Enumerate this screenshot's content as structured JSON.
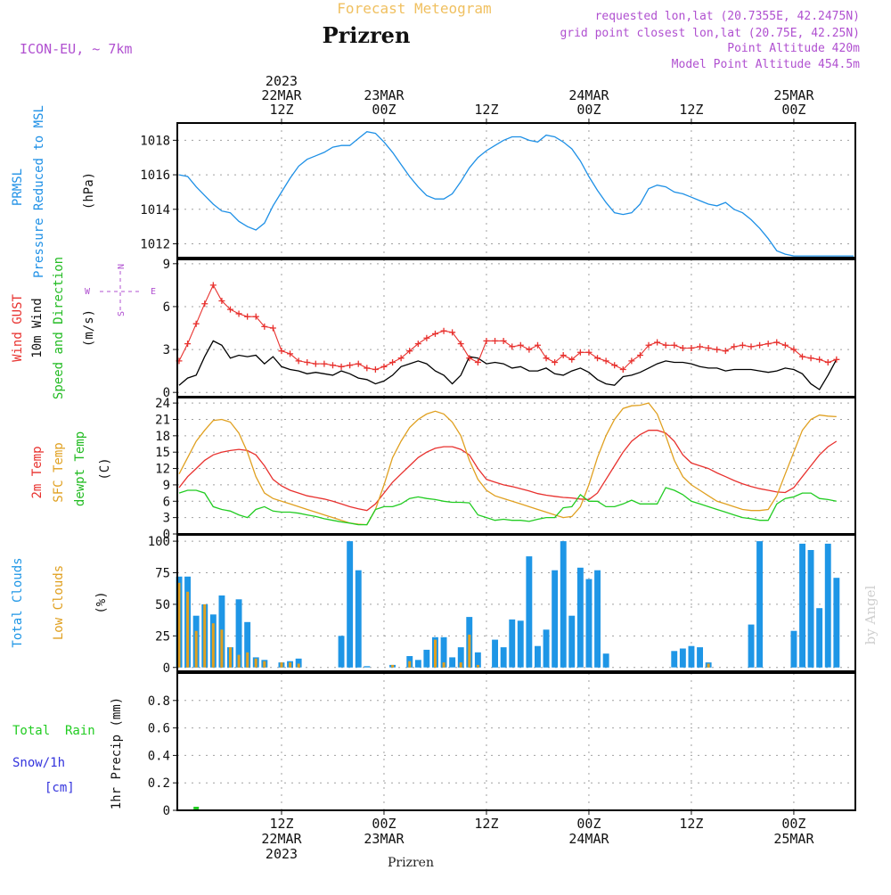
{
  "header": {
    "product_title": "Forecast Meteogram",
    "location": "Prizren",
    "model": "ICON-EU, ~ 7km",
    "requested_point": "requested lon,lat (20.7355E, 42.2475N)",
    "grid_point": "grid point closest lon,lat (20.75E, 42.25N)",
    "point_altitude": "Point Altitude 420m",
    "model_altitude": "Model Point Altitude 454.5m",
    "watermark": "by Angel",
    "footer_location": "Prizren"
  },
  "time_axis": {
    "top_labels": [
      {
        "t": 12,
        "lines": [
          "2023",
          "22MAR",
          "12Z"
        ]
      },
      {
        "t": 24,
        "lines": [
          "23MAR",
          "00Z"
        ]
      },
      {
        "t": 36,
        "lines": [
          "12Z"
        ]
      },
      {
        "t": 48,
        "lines": [
          "24MAR",
          "00Z"
        ]
      },
      {
        "t": 60,
        "lines": [
          "12Z"
        ]
      },
      {
        "t": 72,
        "lines": [
          "25MAR",
          "00Z"
        ]
      }
    ],
    "bottom_labels": [
      {
        "t": 12,
        "lines": [
          "12Z",
          "22MAR",
          "2023"
        ]
      },
      {
        "t": 24,
        "lines": [
          "00Z",
          "23MAR"
        ]
      },
      {
        "t": 36,
        "lines": [
          "12Z"
        ]
      },
      {
        "t": 48,
        "lines": [
          "00Z",
          "24MAR"
        ]
      },
      {
        "t": 60,
        "lines": [
          "12Z"
        ]
      },
      {
        "t": 72,
        "lines": [
          "00Z",
          "25MAR"
        ]
      }
    ]
  },
  "colors": {
    "pressure": "#1e90e6",
    "gust": "#e8312e",
    "wind10m": "#000000",
    "temp2m": "#e8312e",
    "sfc_temp": "#e0a020",
    "dewpoint": "#22cc22",
    "total_clouds": "#1e96e6",
    "low_clouds": "#e0a020",
    "rain": "#22cc22",
    "snow": "#3333dd",
    "label_purple": "#b050d0",
    "title_orange": "#f0c060"
  },
  "chart_data": [
    {
      "type": "line",
      "id": "pressure",
      "ylabel_lines": [
        "PRMSL",
        "Pressure Reduced to MSL"
      ],
      "unit": "(hPa)",
      "ylim": [
        1011.2,
        1019.0
      ],
      "yticks": [
        1012,
        1014,
        1016,
        1018
      ],
      "grid": true,
      "x": [
        0,
        1,
        2,
        3,
        4,
        5,
        6,
        7,
        8,
        9,
        10,
        11,
        12,
        13,
        14,
        15,
        16,
        17,
        18,
        19,
        20,
        21,
        22,
        23,
        24,
        25,
        26,
        27,
        28,
        29,
        30,
        31,
        32,
        33,
        34,
        35,
        36,
        37,
        38,
        39,
        40,
        41,
        42,
        43,
        44,
        45,
        46,
        47,
        48,
        49,
        50,
        51,
        52,
        53,
        54,
        55,
        56,
        57,
        58,
        59,
        60,
        61,
        62,
        63,
        64,
        65,
        66,
        67,
        68,
        69,
        70,
        71,
        72,
        73,
        74,
        75,
        76,
        77,
        78,
        79
      ],
      "series": [
        {
          "values": [
            1016.0,
            1015.9,
            1015.3,
            1014.8,
            1014.3,
            1013.9,
            1013.8,
            1013.3,
            1013.0,
            1012.8,
            1013.2,
            1014.2,
            1015.0,
            1015.8,
            1016.5,
            1016.9,
            1017.1,
            1017.3,
            1017.6,
            1017.7,
            1017.7,
            1018.1,
            1018.5,
            1018.4,
            1017.9,
            1017.3,
            1016.6,
            1015.9,
            1015.3,
            1014.8,
            1014.6,
            1014.6,
            1014.9,
            1015.6,
            1016.4,
            1017.0,
            1017.4,
            1017.7,
            1018.0,
            1018.2,
            1018.2,
            1018.0,
            1017.9,
            1018.3,
            1018.2,
            1017.9,
            1017.5,
            1016.8,
            1015.9,
            1015.1,
            1014.4,
            1013.8,
            1013.7,
            1013.8,
            1014.3,
            1015.2,
            1015.4,
            1015.3,
            1015.0,
            1014.9,
            1014.7,
            1014.5,
            1014.3,
            1014.2,
            1014.4,
            1014.0,
            1013.8,
            1013.4,
            1012.9,
            1012.3,
            1011.6,
            1011.4,
            1011.3,
            1011.3,
            1011.3,
            1011.3,
            1011.3,
            1011.3,
            1011.3,
            1011.3
          ]
        }
      ]
    },
    {
      "type": "line",
      "id": "wind",
      "ylabel_lines": [
        "Wind GUST",
        "10m Wind",
        "Speed and Direction"
      ],
      "unit": "(m/s)",
      "compass": {
        "n": "N",
        "s": "S",
        "w": "W",
        "e": "E"
      },
      "ylim": [
        -0.3,
        9.3
      ],
      "yticks": [
        0,
        3,
        6,
        9
      ],
      "grid": true,
      "x": [
        0,
        1,
        2,
        3,
        4,
        5,
        6,
        7,
        8,
        9,
        10,
        11,
        12,
        13,
        14,
        15,
        16,
        17,
        18,
        19,
        20,
        21,
        22,
        23,
        24,
        25,
        26,
        27,
        28,
        29,
        30,
        31,
        32,
        33,
        34,
        35,
        36,
        37,
        38,
        39,
        40,
        41,
        42,
        43,
        44,
        45,
        46,
        47,
        48,
        49,
        50,
        51,
        52,
        53,
        54,
        55,
        56,
        57,
        58,
        59,
        60,
        61,
        62,
        63,
        64,
        65,
        66,
        67,
        68,
        69,
        70,
        71,
        72,
        73,
        74,
        75,
        76,
        77
      ],
      "series": [
        {
          "name": "Wind GUST",
          "style": "plus",
          "values": [
            2.2,
            3.4,
            4.8,
            6.2,
            7.5,
            6.4,
            5.8,
            5.5,
            5.3,
            5.3,
            4.6,
            4.5,
            2.9,
            2.7,
            2.2,
            2.1,
            2.0,
            2.0,
            1.9,
            1.8,
            1.9,
            2.0,
            1.7,
            1.6,
            1.8,
            2.1,
            2.4,
            2.9,
            3.4,
            3.8,
            4.1,
            4.3,
            4.2,
            3.4,
            2.4,
            2.1,
            3.6,
            3.6,
            3.6,
            3.2,
            3.3,
            3.0,
            3.3,
            2.4,
            2.1,
            2.6,
            2.3,
            2.8,
            2.8,
            2.4,
            2.2,
            1.9,
            1.6,
            2.2,
            2.6,
            3.3,
            3.5,
            3.3,
            3.3,
            3.1,
            3.1,
            3.2,
            3.1,
            3.0,
            2.9,
            3.2,
            3.3,
            3.2,
            3.3,
            3.4,
            3.5,
            3.3,
            3.0,
            2.5,
            2.4,
            2.3,
            2.1,
            2.3
          ]
        },
        {
          "name": "10m Wind",
          "style": "line",
          "values": [
            0.5,
            1.0,
            1.2,
            2.5,
            3.6,
            3.3,
            2.4,
            2.6,
            2.5,
            2.6,
            2.0,
            2.5,
            1.8,
            1.6,
            1.5,
            1.3,
            1.4,
            1.3,
            1.2,
            1.5,
            1.3,
            1.0,
            0.9,
            0.6,
            0.8,
            1.2,
            1.8,
            2.0,
            2.2,
            2.0,
            1.5,
            1.2,
            0.6,
            1.2,
            2.5,
            2.4,
            2.0,
            2.1,
            2.0,
            1.7,
            1.8,
            1.5,
            1.5,
            1.7,
            1.3,
            1.2,
            1.5,
            1.7,
            1.4,
            0.9,
            0.6,
            0.5,
            1.1,
            1.2,
            1.4,
            1.7,
            2.0,
            2.2,
            2.1,
            2.1,
            2.0,
            1.8,
            1.7,
            1.7,
            1.5,
            1.6,
            1.6,
            1.6,
            1.5,
            1.4,
            1.5,
            1.7,
            1.6,
            1.3,
            0.6,
            0.2,
            1.2,
            2.3
          ]
        }
      ]
    },
    {
      "type": "line",
      "id": "temperature",
      "ylabel_lines": [
        "2m Temp",
        "SFC Temp",
        "dewpt Temp"
      ],
      "unit": "(C)",
      "ylim": [
        0,
        25
      ],
      "yticks": [
        0,
        3,
        6,
        9,
        12,
        15,
        18,
        21,
        24
      ],
      "grid": true,
      "x": [
        0,
        1,
        2,
        3,
        4,
        5,
        6,
        7,
        8,
        9,
        10,
        11,
        12,
        13,
        14,
        15,
        16,
        17,
        18,
        19,
        20,
        21,
        22,
        23,
        24,
        25,
        26,
        27,
        28,
        29,
        30,
        31,
        32,
        33,
        34,
        35,
        36,
        37,
        38,
        39,
        40,
        41,
        42,
        43,
        44,
        45,
        46,
        47,
        48,
        49,
        50,
        51,
        52,
        53,
        54,
        55,
        56,
        57,
        58,
        59,
        60,
        61,
        62,
        63,
        64,
        65,
        66,
        67,
        68,
        69,
        70,
        71,
        72,
        73,
        74,
        75,
        76,
        77
      ],
      "series": [
        {
          "name": "2m Temp",
          "values": [
            8.5,
            10.5,
            12.0,
            13.5,
            14.5,
            15.0,
            15.3,
            15.5,
            15.3,
            14.5,
            12.5,
            10.0,
            8.8,
            8.0,
            7.5,
            7.0,
            6.7,
            6.4,
            6.0,
            5.5,
            5.0,
            4.6,
            4.3,
            5.5,
            7.5,
            9.5,
            11.0,
            12.5,
            14.0,
            15.0,
            15.7,
            16.0,
            16.0,
            15.5,
            14.5,
            12.0,
            10.0,
            9.5,
            9.0,
            8.7,
            8.3,
            7.9,
            7.4,
            7.1,
            6.9,
            6.7,
            6.6,
            6.4,
            6.3,
            7.5,
            10.0,
            12.5,
            15.0,
            17.0,
            18.2,
            19.0,
            19.0,
            18.5,
            17.0,
            14.5,
            13.0,
            12.5,
            12.0,
            11.2,
            10.5,
            9.8,
            9.2,
            8.7,
            8.3,
            8.0,
            7.7,
            7.6,
            8.5,
            10.5,
            12.5,
            14.5,
            16.0,
            17.0
          ]
        },
        {
          "name": "SFC Temp",
          "values": [
            11.0,
            14.0,
            17.0,
            19.0,
            20.8,
            21.0,
            20.5,
            18.5,
            15.0,
            10.5,
            7.5,
            6.5,
            6.0,
            5.5,
            5.0,
            4.5,
            4.0,
            3.5,
            3.0,
            2.5,
            2.0,
            1.8,
            1.7,
            4.5,
            9.0,
            14.0,
            17.0,
            19.5,
            21.0,
            22.0,
            22.5,
            22.0,
            20.5,
            18.0,
            13.5,
            10.0,
            8.0,
            7.0,
            6.5,
            6.0,
            5.5,
            5.0,
            4.5,
            4.0,
            3.5,
            3.0,
            3.2,
            5.0,
            9.0,
            14.0,
            18.0,
            21.0,
            23.0,
            23.5,
            23.6,
            24.0,
            22.0,
            18.0,
            13.5,
            10.5,
            9.0,
            8.0,
            7.0,
            6.0,
            5.5,
            5.0,
            4.5,
            4.3,
            4.3,
            4.5,
            7.0,
            11.0,
            15.0,
            19.0,
            21.0,
            21.8,
            21.6,
            21.5
          ]
        },
        {
          "name": "dewpt Temp",
          "values": [
            7.5,
            8.0,
            8.0,
            7.5,
            5.0,
            4.5,
            4.2,
            3.5,
            3.0,
            4.5,
            5.0,
            4.2,
            4.0,
            4.0,
            3.8,
            3.5,
            3.2,
            2.8,
            2.5,
            2.2,
            2.0,
            1.7,
            1.7,
            4.5,
            5.0,
            5.0,
            5.5,
            6.5,
            6.8,
            6.5,
            6.3,
            6.0,
            5.8,
            5.8,
            5.7,
            3.5,
            3.0,
            2.5,
            2.7,
            2.5,
            2.5,
            2.3,
            2.7,
            3.0,
            3.0,
            4.8,
            5.0,
            7.2,
            6.0,
            6.0,
            5.0,
            5.0,
            5.5,
            6.2,
            5.5,
            5.5,
            5.5,
            8.5,
            8.0,
            7.2,
            6.0,
            5.5,
            5.0,
            4.5,
            4.0,
            3.5,
            3.0,
            2.8,
            2.5,
            2.5,
            5.5,
            6.5,
            6.8,
            7.5,
            7.5,
            6.5,
            6.3,
            6.0
          ]
        }
      ]
    },
    {
      "type": "bar",
      "id": "clouds",
      "ylabel_lines": [
        "Total Clouds",
        "Low Clouds"
      ],
      "unit": "(%)",
      "ylim": [
        -3,
        105
      ],
      "yticks": [
        0,
        25,
        50,
        75,
        100
      ],
      "grid": true,
      "x": [
        0,
        1,
        2,
        3,
        4,
        5,
        6,
        7,
        8,
        9,
        10,
        11,
        12,
        13,
        14,
        15,
        16,
        17,
        18,
        19,
        20,
        21,
        22,
        23,
        24,
        25,
        26,
        27,
        28,
        29,
        30,
        31,
        32,
        33,
        34,
        35,
        36,
        37,
        38,
        39,
        40,
        41,
        42,
        43,
        44,
        45,
        46,
        47,
        48,
        49,
        50,
        51,
        52,
        53,
        54,
        55,
        56,
        57,
        58,
        59,
        60,
        61,
        62,
        63,
        64,
        65,
        66,
        67,
        68,
        69,
        70,
        71,
        72,
        73,
        74,
        75,
        76,
        77
      ],
      "series": [
        {
          "name": "Total Clouds",
          "values": [
            72,
            72,
            41,
            50,
            42,
            57,
            16,
            54,
            36,
            8,
            6,
            0,
            4,
            5,
            7,
            0,
            0,
            0,
            0,
            25,
            100,
            77,
            1,
            0,
            0,
            2,
            0,
            9,
            6,
            14,
            24,
            24,
            8,
            16,
            40,
            12,
            0,
            22,
            16,
            38,
            37,
            88,
            17,
            30,
            77,
            100,
            41,
            79,
            70,
            77,
            11,
            0,
            0,
            0,
            0,
            0,
            0,
            0,
            13,
            15,
            17,
            16,
            4,
            0,
            0,
            0,
            0,
            34,
            100,
            0,
            0,
            0,
            29,
            98,
            93,
            47,
            98,
            71
          ]
        },
        {
          "name": "Low Clouds",
          "values": [
            67,
            60,
            29,
            50,
            35,
            30,
            16,
            10,
            12,
            7,
            5,
            0,
            4,
            4,
            3,
            0,
            0,
            0,
            0,
            0,
            0,
            0,
            0,
            0,
            0,
            2,
            0,
            5,
            0,
            0,
            22,
            4,
            0,
            4,
            26,
            2,
            0,
            0,
            0,
            0,
            0,
            0,
            0,
            0,
            0,
            0,
            0,
            0,
            0,
            0,
            0,
            0,
            0,
            0,
            0,
            0,
            0,
            0,
            0,
            0,
            0,
            0,
            3,
            0,
            0,
            0,
            0,
            0,
            0,
            0,
            0,
            0,
            0,
            0,
            0,
            0,
            0,
            0
          ]
        }
      ]
    },
    {
      "type": "bar",
      "id": "precip",
      "ylabel_lines": [
        "1hr Precip (mm)"
      ],
      "side_labels": [
        "Total  Rain",
        "Snow/1h",
        "[cm]"
      ],
      "ylim": [
        0,
        1.0
      ],
      "yticks": [
        0,
        0.2,
        0.4,
        0.6,
        0.8
      ],
      "ytick_labels": [
        "0",
        "0.2",
        "0.4",
        "0.6",
        "0.8"
      ],
      "grid": true,
      "x": [
        2
      ],
      "series": [
        {
          "name": "Total  Rain",
          "values": [
            0.02
          ]
        }
      ]
    }
  ]
}
